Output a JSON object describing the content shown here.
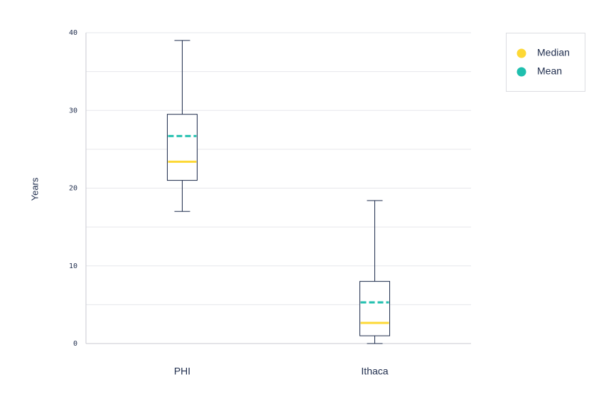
{
  "chart_data": {
    "type": "box",
    "y_label": "Years",
    "categories": [
      "PHI",
      "Ithaca"
    ],
    "boxes": [
      {
        "min": 17.0,
        "q1": 21.0,
        "median": 23.4,
        "q3": 29.5,
        "max": 39.0,
        "mean": 26.7
      },
      {
        "min": 0,
        "q1": 1.0,
        "median": 2.65,
        "q3": 8.0,
        "max": 18.4,
        "mean": 5.3
      }
    ],
    "ylim": [
      0,
      40
    ],
    "yticks": [
      0,
      10,
      20,
      30,
      40
    ],
    "minor_yticks": [
      5,
      15,
      25,
      35
    ],
    "grid": true,
    "legend": [
      {
        "name": "Median",
        "color": "#fdd835"
      },
      {
        "name": "Mean",
        "color": "#1fbfae"
      }
    ],
    "box_color": "#1f2d4d"
  }
}
